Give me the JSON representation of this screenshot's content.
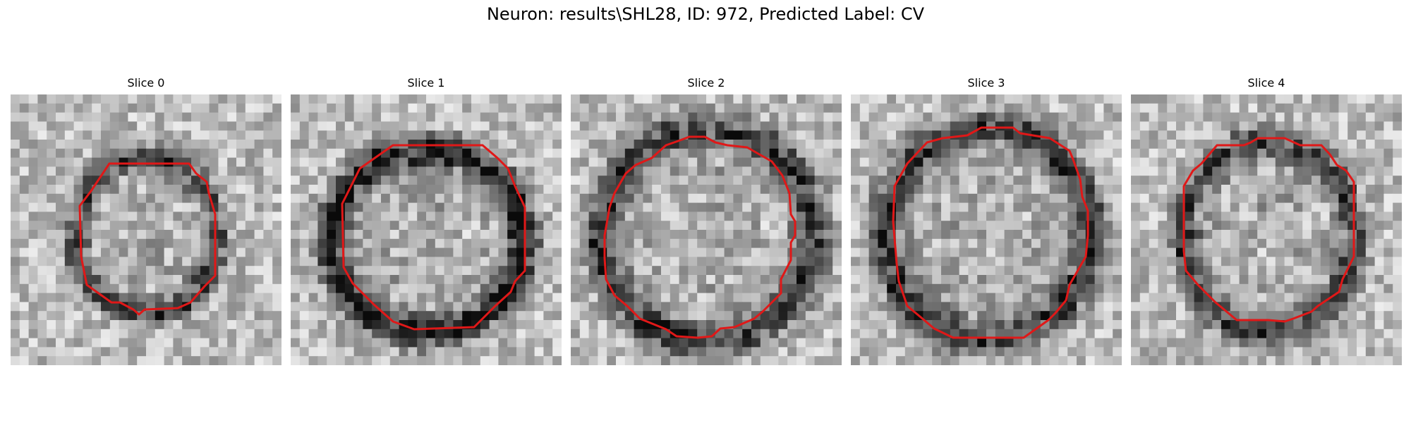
{
  "figure": {
    "title": "Neuron: results\\SHL28, ID: 972, Predicted Label: CV",
    "contour_color": "#e01818"
  },
  "slices": [
    {
      "title": "Slice 0",
      "ring_darkness": 0.55,
      "seed": 11
    },
    {
      "title": "Slice 1",
      "ring_darkness": 0.75,
      "seed": 23
    },
    {
      "title": "Slice 2",
      "ring_darkness": 0.6,
      "seed": 37
    },
    {
      "title": "Slice 3",
      "ring_darkness": 0.6,
      "seed": 41
    },
    {
      "title": "Slice 4",
      "ring_darkness": 0.55,
      "seed": 53
    }
  ]
}
